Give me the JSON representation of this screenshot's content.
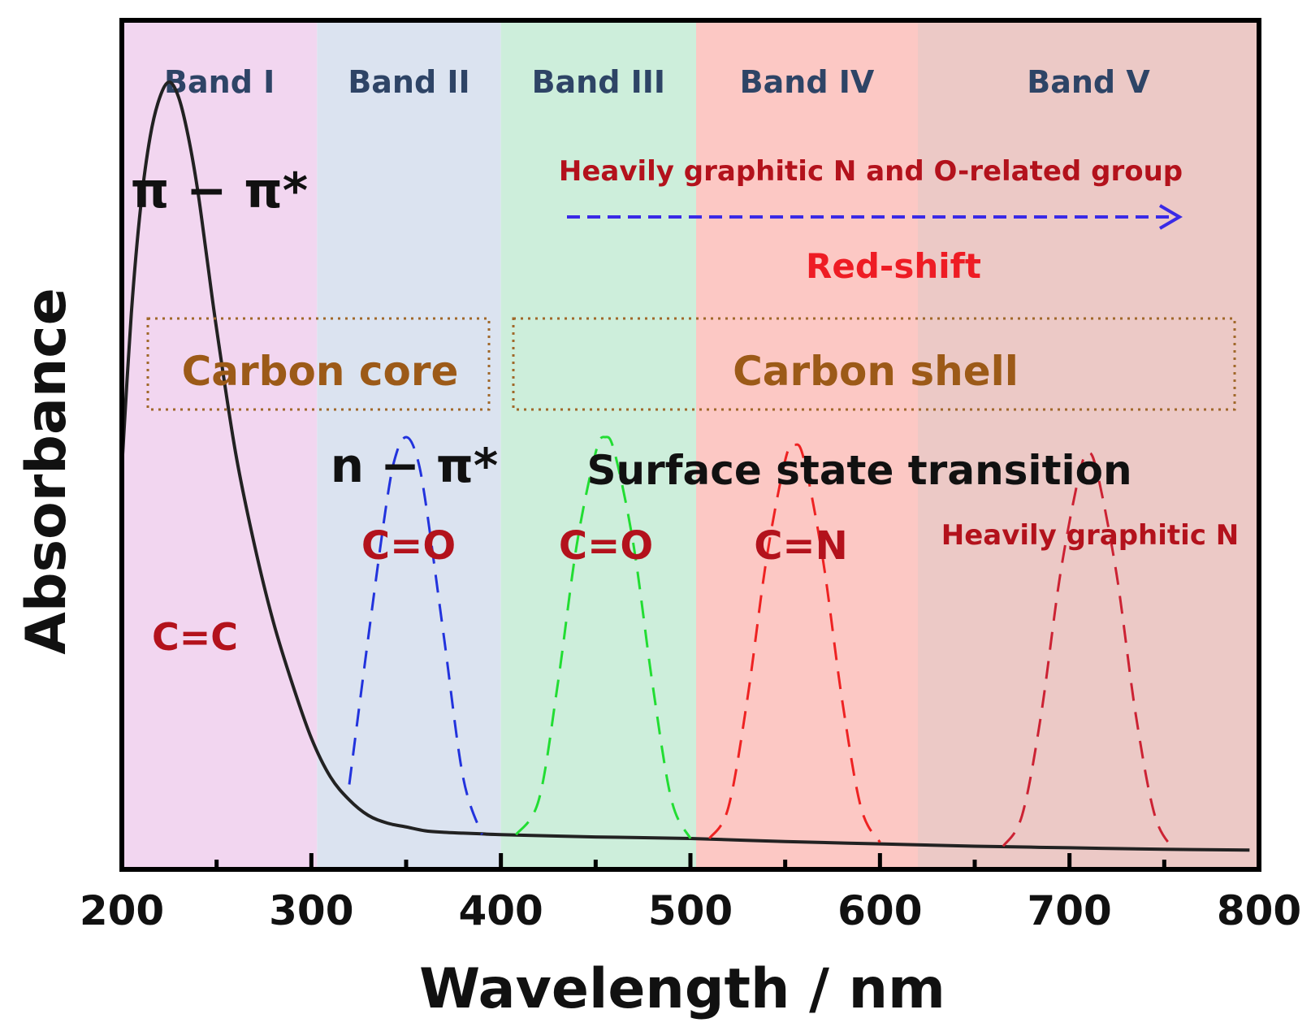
{
  "chart_data": {
    "type": "line",
    "title": "",
    "xlabel": "Wavelength / nm",
    "ylabel": "Absorbance",
    "xlim": [
      200,
      800
    ],
    "ylim": [
      0,
      1.1
    ],
    "x_ticks": [
      "200",
      "300",
      "400",
      "500",
      "600",
      "700",
      "800"
    ],
    "bands": [
      {
        "label": "Band I",
        "from": 200,
        "to": 303,
        "color": "#f2d6f0"
      },
      {
        "label": "Band II",
        "from": 303,
        "to": 400,
        "color": "#dbe3f0"
      },
      {
        "label": "Band III",
        "from": 400,
        "to": 503,
        "color": "#cdeedb"
      },
      {
        "label": "Band IV",
        "from": 503,
        "to": 620,
        "color": "#fcc8c4"
      },
      {
        "label": "Band V",
        "from": 620,
        "to": 800,
        "color": "#ecc9c6"
      }
    ],
    "series": [
      {
        "color": "#222222",
        "style": "solid",
        "x": [
          200,
          205,
          210,
          215,
          220,
          225,
          230,
          235,
          240,
          245,
          250,
          260,
          270,
          280,
          290,
          300,
          310,
          320,
          330,
          340,
          350,
          360,
          370,
          380,
          390,
          400,
          450,
          500,
          550,
          600,
          650,
          700,
          750,
          795
        ],
        "y": [
          0.52,
          0.72,
          0.86,
          0.95,
          1.0,
          1.02,
          1.0,
          0.95,
          0.88,
          0.79,
          0.7,
          0.54,
          0.42,
          0.32,
          0.24,
          0.17,
          0.12,
          0.09,
          0.07,
          0.06,
          0.055,
          0.05,
          0.048,
          0.047,
          0.046,
          0.045,
          0.042,
          0.04,
          0.036,
          0.033,
          0.03,
          0.028,
          0.026,
          0.025
        ]
      },
      {
        "color": "#2233dd",
        "style": "dashed",
        "x": [
          320,
          330,
          340,
          345,
          350,
          355,
          360,
          370,
          380,
          390
        ],
        "y": [
          0.11,
          0.3,
          0.48,
          0.54,
          0.56,
          0.54,
          0.48,
          0.3,
          0.12,
          0.045
        ]
      },
      {
        "color": "#22dd33",
        "style": "dashed",
        "x": [
          408,
          420,
          430,
          440,
          450,
          455,
          460,
          470,
          480,
          490,
          500
        ],
        "y": [
          0.045,
          0.09,
          0.24,
          0.42,
          0.54,
          0.56,
          0.54,
          0.42,
          0.24,
          0.09,
          0.04
        ]
      },
      {
        "color": "#ee2222",
        "style": "dashed",
        "x": [
          510,
          520,
          530,
          540,
          550,
          555,
          560,
          570,
          580,
          590,
          600
        ],
        "y": [
          0.04,
          0.08,
          0.22,
          0.4,
          0.53,
          0.55,
          0.53,
          0.4,
          0.22,
          0.08,
          0.035
        ]
      },
      {
        "color": "#cc2233",
        "style": "dashed",
        "x": [
          665,
          675,
          685,
          695,
          705,
          710,
          715,
          725,
          735,
          745,
          755
        ],
        "y": [
          0.03,
          0.07,
          0.2,
          0.38,
          0.51,
          0.54,
          0.51,
          0.38,
          0.2,
          0.07,
          0.026
        ]
      }
    ],
    "annotations": {
      "pi_pi": "π − π*",
      "n_pi": "n − π*",
      "cc": "C=C",
      "co1": "C=O",
      "co2": "C=O",
      "cn": "C=N",
      "graphitic_n": "Heavily graphitic N",
      "surface": "Surface state transition",
      "carbon_core": "Carbon core",
      "carbon_shell": "Carbon shell",
      "heavily_group": "Heavily graphitic N and O-related group",
      "red_shift": "Red-shift"
    },
    "grid": false
  }
}
